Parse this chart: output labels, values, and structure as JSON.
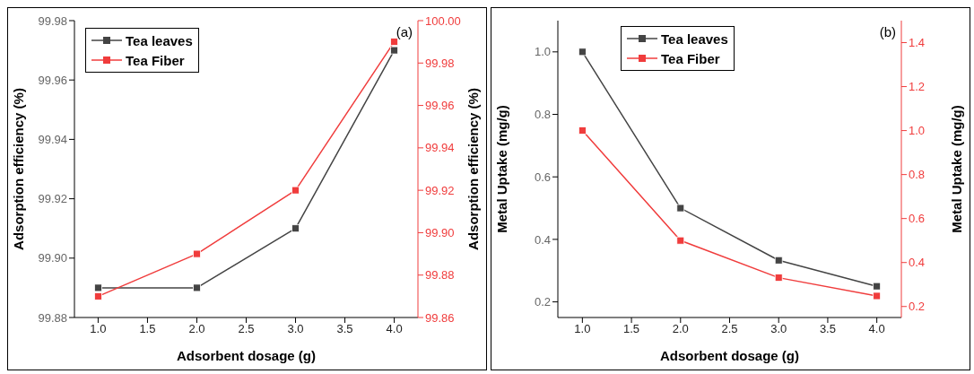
{
  "chart_data": [
    {
      "type": "line",
      "xlabel": "Adsorbent dosage (g)",
      "ylabel": "Adsorption efficiency (%)",
      "y2label": "Adsorption efficiency (%)",
      "annotations": [
        "(a)"
      ],
      "legend": "top left",
      "marker": "square",
      "x": [
        1,
        2,
        3,
        4
      ],
      "xlim": [
        0.76,
        4.24
      ],
      "xticks": [
        {
          "value": 1,
          "label": "1.0"
        },
        {
          "value": 1.5,
          "label": "1.5"
        },
        {
          "value": 2,
          "label": "2.0"
        },
        {
          "value": 2.5,
          "label": "2.5"
        },
        {
          "value": 3,
          "label": "3.0"
        },
        {
          "value": 3.5,
          "label": "3.5"
        },
        {
          "value": 4,
          "label": "4.0"
        }
      ],
      "ylim": [
        99.88,
        99.98
      ],
      "yticks": [
        {
          "value": 99.88,
          "label": "99.88"
        },
        {
          "value": 99.9,
          "label": "99.90"
        },
        {
          "value": 99.92,
          "label": "99.92"
        },
        {
          "value": 99.94,
          "label": "99.94"
        },
        {
          "value": 99.96,
          "label": "99.96"
        },
        {
          "value": 99.98,
          "label": "99.98"
        }
      ],
      "y2lim": [
        99.86,
        100
      ],
      "y2ticks": [
        {
          "value": 99.86,
          "label": "99.86"
        },
        {
          "value": 99.88,
          "label": "99.88"
        },
        {
          "value": 99.9,
          "label": "99.90"
        },
        {
          "value": 99.92,
          "label": "99.92"
        },
        {
          "value": 99.94,
          "label": "99.94"
        },
        {
          "value": 99.96,
          "label": "99.96"
        },
        {
          "value": 99.98,
          "label": "99.98"
        },
        {
          "value": 100,
          "label": "100.00"
        }
      ],
      "series": [
        {
          "name": "Tea leaves",
          "color": "#444444",
          "values": [
            99.89,
            99.89,
            99.91,
            99.97
          ]
        },
        {
          "name": "Tea Fiber",
          "color": "#f03c3c",
          "axis": "y2",
          "values": [
            99.87,
            99.89,
            99.92,
            99.99
          ]
        }
      ]
    },
    {
      "type": "line",
      "xlabel": "Adsorbent dosage (g)",
      "ylabel": "Metal Uptake (mg/g)",
      "y2label": "Metal Uptake (mg/g)",
      "annotations": [
        "(b)"
      ],
      "legend": "top",
      "marker": "square",
      "x": [
        1,
        2,
        3,
        4
      ],
      "xlim": [
        0.75,
        4.25
      ],
      "xticks": [
        {
          "value": 1,
          "label": "1.0"
        },
        {
          "value": 1.5,
          "label": "1.5"
        },
        {
          "value": 2,
          "label": "2.0"
        },
        {
          "value": 2.5,
          "label": "2.5"
        },
        {
          "value": 3,
          "label": "3.0"
        },
        {
          "value": 3.5,
          "label": "3.5"
        },
        {
          "value": 4,
          "label": "4.0"
        }
      ],
      "ylim": [
        0.15,
        1.1
      ],
      "yticks": [
        {
          "value": 0.2,
          "label": "0.2"
        },
        {
          "value": 0.4,
          "label": "0.4"
        },
        {
          "value": 0.6,
          "label": "0.6"
        },
        {
          "value": 0.8,
          "label": "0.8"
        },
        {
          "value": 1,
          "label": "1.0"
        }
      ],
      "y2lim": [
        0.15,
        1.5
      ],
      "y2ticks": [
        {
          "value": 0.2,
          "label": "0.2"
        },
        {
          "value": 0.4,
          "label": "0.4"
        },
        {
          "value": 0.6,
          "label": "0.6"
        },
        {
          "value": 0.8,
          "label": "0.8"
        },
        {
          "value": 1,
          "label": "1.0"
        },
        {
          "value": 1.2,
          "label": "1.2"
        },
        {
          "value": 1.4,
          "label": "1.4"
        }
      ],
      "series": [
        {
          "name": "Tea leaves",
          "color": "#444444",
          "values": [
            1.0,
            0.5,
            0.333,
            0.25
          ]
        },
        {
          "name": "Tea Fiber",
          "color": "#f03c3c",
          "axis": "y2",
          "values": [
            1.0,
            0.5,
            0.331,
            0.248
          ]
        }
      ]
    }
  ]
}
